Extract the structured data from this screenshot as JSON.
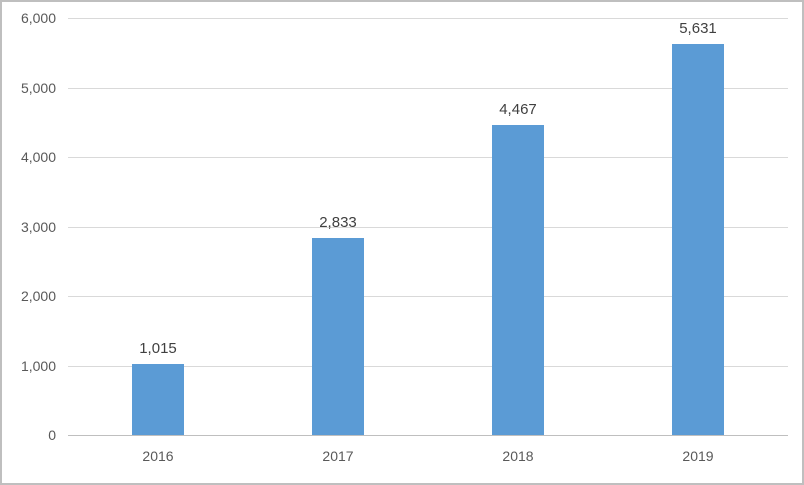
{
  "chart_data": {
    "type": "bar",
    "title": "",
    "xlabel": "",
    "ylabel": "",
    "categories": [
      "2016",
      "2017",
      "2018",
      "2019"
    ],
    "values": [
      1015,
      2833,
      4467,
      5631
    ],
    "value_labels": [
      "1,015",
      "2,833",
      "4,467",
      "5,631"
    ],
    "ylim": [
      0,
      6000
    ],
    "ytick_step": 1000,
    "ytick_labels": [
      "0",
      "1,000",
      "2,000",
      "3,000",
      "4,000",
      "5,000",
      "6,000"
    ],
    "grid": true,
    "legend": false,
    "colors": {
      "bar": "#5b9bd5",
      "gridline": "#d9d9d9",
      "axis_line": "#bfbfbf",
      "tick_label": "#595959",
      "data_label": "#404040",
      "background": "#ffffff",
      "border": "#bfbfbf"
    }
  }
}
